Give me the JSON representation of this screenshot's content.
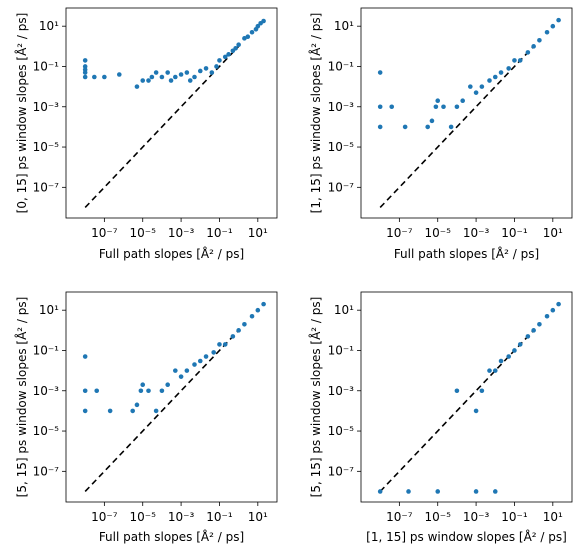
{
  "chart_data": [
    {
      "type": "scatter",
      "xlabel": "Full path slopes [Å² / ps]",
      "ylabel": "[0, 15] ps window slopes [Å² / ps]",
      "x_scale": "log",
      "y_scale": "log",
      "xlim": [
        1e-09,
        100
      ],
      "ylim": [
        3e-09,
        80
      ],
      "x_ticks": [
        -7,
        -5,
        -3,
        -1,
        1
      ],
      "y_ticks": [
        -7,
        -5,
        -3,
        -1,
        1
      ],
      "x_tick_labels": [
        "10⁻⁷",
        "10⁻⁵",
        "10⁻³",
        "10⁻¹",
        "10¹"
      ],
      "y_tick_labels": [
        "10⁻⁷",
        "10⁻⁵",
        "10⁻³",
        "10⁻¹",
        "10¹"
      ],
      "reference_line": {
        "style": "dashed",
        "color": "#000000",
        "from": [
          1e-08,
          1e-08
        ],
        "to": [
          1,
          1
        ]
      },
      "series": [
        {
          "color": "#1f77b4",
          "points": [
            [
              1e-08,
              0.2
            ],
            [
              1e-08,
              0.1
            ],
            [
              1e-08,
              0.07
            ],
            [
              1e-08,
              0.05
            ],
            [
              1e-08,
              0.03
            ],
            [
              3e-08,
              0.03
            ],
            [
              1e-07,
              0.03
            ],
            [
              6e-07,
              0.04
            ],
            [
              5e-06,
              0.01
            ],
            [
              1e-05,
              0.02
            ],
            [
              2e-05,
              0.02
            ],
            [
              3e-05,
              0.03
            ],
            [
              5e-05,
              0.05
            ],
            [
              0.0001,
              0.03
            ],
            [
              0.0002,
              0.05
            ],
            [
              0.0003,
              0.02
            ],
            [
              0.0005,
              0.03
            ],
            [
              0.001,
              0.04
            ],
            [
              0.002,
              0.05
            ],
            [
              0.003,
              0.02
            ],
            [
              0.005,
              0.03
            ],
            [
              0.01,
              0.06
            ],
            [
              0.02,
              0.08
            ],
            [
              0.04,
              0.05
            ],
            [
              0.07,
              0.1
            ],
            [
              0.1,
              0.2
            ],
            [
              0.2,
              0.3
            ],
            [
              0.3,
              0.4
            ],
            [
              0.5,
              0.6
            ],
            [
              0.7,
              0.8
            ],
            [
              1,
              1.2
            ],
            [
              2,
              2.5
            ],
            [
              3,
              3
            ],
            [
              5,
              5
            ],
            [
              8,
              7
            ],
            [
              10,
              10
            ],
            [
              14,
              14
            ],
            [
              20,
              18
            ]
          ]
        }
      ]
    },
    {
      "type": "scatter",
      "xlabel": "Full path slopes [Å² / ps]",
      "ylabel": "[1, 15] ps window slopes [Å² / ps]",
      "x_scale": "log",
      "y_scale": "log",
      "xlim": [
        1e-09,
        100
      ],
      "ylim": [
        3e-09,
        80
      ],
      "x_ticks": [
        -7,
        -5,
        -3,
        -1,
        1
      ],
      "y_ticks": [
        -7,
        -5,
        -3,
        -1,
        1
      ],
      "x_tick_labels": [
        "10⁻⁷",
        "10⁻⁵",
        "10⁻³",
        "10⁻¹",
        "10¹"
      ],
      "y_tick_labels": [
        "10⁻⁷",
        "10⁻⁵",
        "10⁻³",
        "10⁻¹",
        "10¹"
      ],
      "reference_line": {
        "style": "dashed",
        "color": "#000000",
        "from": [
          1e-08,
          1e-08
        ],
        "to": [
          1,
          1
        ]
      },
      "series": [
        {
          "color": "#1f77b4",
          "points": [
            [
              1e-08,
              0.05
            ],
            [
              1e-08,
              0.001
            ],
            [
              1e-08,
              0.0001
            ],
            [
              4e-08,
              0.001
            ],
            [
              2e-07,
              0.0001
            ],
            [
              3e-06,
              0.0001
            ],
            [
              5e-06,
              0.0002
            ],
            [
              8e-06,
              0.001
            ],
            [
              1e-05,
              0.002
            ],
            [
              2e-05,
              0.001
            ],
            [
              5e-05,
              0.0001
            ],
            [
              0.0001,
              0.001
            ],
            [
              0.0002,
              0.002
            ],
            [
              0.0005,
              0.01
            ],
            [
              0.001,
              0.005
            ],
            [
              0.002,
              0.01
            ],
            [
              0.005,
              0.02
            ],
            [
              0.01,
              0.03
            ],
            [
              0.02,
              0.05
            ],
            [
              0.05,
              0.08
            ],
            [
              0.1,
              0.2
            ],
            [
              0.2,
              0.2
            ],
            [
              0.5,
              0.5
            ],
            [
              1,
              1
            ],
            [
              2,
              2
            ],
            [
              5,
              5
            ],
            [
              10,
              10
            ],
            [
              20,
              20
            ]
          ]
        }
      ]
    },
    {
      "type": "scatter",
      "xlabel": "Full path slopes [Å² / ps]",
      "ylabel": "[5, 15] ps window slopes [Å² / ps]",
      "x_scale": "log",
      "y_scale": "log",
      "xlim": [
        1e-09,
        100
      ],
      "ylim": [
        3e-09,
        80
      ],
      "x_ticks": [
        -7,
        -5,
        -3,
        -1,
        1
      ],
      "y_ticks": [
        -7,
        -5,
        -3,
        -1,
        1
      ],
      "x_tick_labels": [
        "10⁻⁷",
        "10⁻⁵",
        "10⁻³",
        "10⁻¹",
        "10¹"
      ],
      "y_tick_labels": [
        "10⁻⁷",
        "10⁻⁵",
        "10⁻³",
        "10⁻¹",
        "10¹"
      ],
      "reference_line": {
        "style": "dashed",
        "color": "#000000",
        "from": [
          1e-08,
          1e-08
        ],
        "to": [
          1,
          1
        ]
      },
      "series": [
        {
          "color": "#1f77b4",
          "points": [
            [
              1e-08,
              0.05
            ],
            [
              1e-08,
              0.001
            ],
            [
              1e-08,
              0.0001
            ],
            [
              4e-08,
              0.001
            ],
            [
              2e-07,
              0.0001
            ],
            [
              3e-06,
              0.0001
            ],
            [
              5e-06,
              0.0002
            ],
            [
              8e-06,
              0.001
            ],
            [
              1e-05,
              0.002
            ],
            [
              2e-05,
              0.001
            ],
            [
              5e-05,
              0.0001
            ],
            [
              0.0001,
              0.001
            ],
            [
              0.0002,
              0.002
            ],
            [
              0.0005,
              0.01
            ],
            [
              0.001,
              0.005
            ],
            [
              0.002,
              0.01
            ],
            [
              0.005,
              0.02
            ],
            [
              0.01,
              0.03
            ],
            [
              0.02,
              0.05
            ],
            [
              0.05,
              0.08
            ],
            [
              0.1,
              0.2
            ],
            [
              0.2,
              0.2
            ],
            [
              0.5,
              0.5
            ],
            [
              1,
              1
            ],
            [
              2,
              2
            ],
            [
              5,
              5
            ],
            [
              10,
              10
            ],
            [
              20,
              20
            ]
          ]
        }
      ]
    },
    {
      "type": "scatter",
      "xlabel": "[1, 15] ps window slopes [Å² / ps]",
      "ylabel": "[5, 15] ps window slopes [Å² / ps]",
      "x_scale": "log",
      "y_scale": "log",
      "xlim": [
        1e-09,
        100
      ],
      "ylim": [
        3e-09,
        80
      ],
      "x_ticks": [
        -7,
        -5,
        -3,
        -1,
        1
      ],
      "y_ticks": [
        -7,
        -5,
        -3,
        -1,
        1
      ],
      "x_tick_labels": [
        "10⁻⁷",
        "10⁻⁵",
        "10⁻³",
        "10⁻¹",
        "10¹"
      ],
      "y_tick_labels": [
        "10⁻⁷",
        "10⁻⁵",
        "10⁻³",
        "10⁻¹",
        "10¹"
      ],
      "reference_line": {
        "style": "dashed",
        "color": "#000000",
        "from": [
          1e-08,
          1e-08
        ],
        "to": [
          1,
          1
        ]
      },
      "series": [
        {
          "color": "#1f77b4",
          "points": [
            [
              1e-08,
              1e-08
            ],
            [
              3e-07,
              1e-08
            ],
            [
              1e-05,
              1e-08
            ],
            [
              0.001,
              1e-08
            ],
            [
              0.01,
              1e-08
            ],
            [
              0.0001,
              0.001
            ],
            [
              0.001,
              0.0001
            ],
            [
              0.002,
              0.001
            ],
            [
              0.005,
              0.01
            ],
            [
              0.01,
              0.01
            ],
            [
              0.02,
              0.03
            ],
            [
              0.05,
              0.05
            ],
            [
              0.1,
              0.1
            ],
            [
              0.2,
              0.2
            ],
            [
              0.5,
              0.5
            ],
            [
              1,
              1
            ],
            [
              2,
              2
            ],
            [
              5,
              5
            ],
            [
              10,
              10
            ],
            [
              20,
              20
            ]
          ]
        }
      ]
    }
  ]
}
